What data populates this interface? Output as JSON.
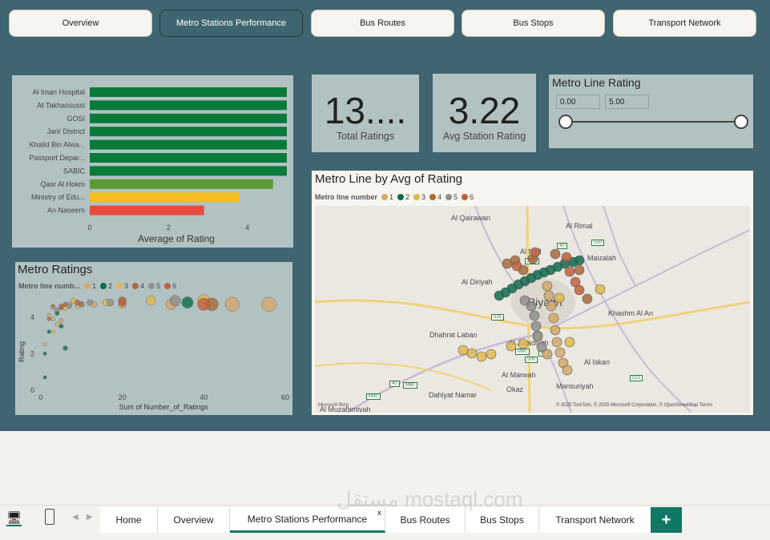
{
  "nav": {
    "buttons": [
      "Overview",
      "Metro Stations Performance",
      "Bus Routes",
      "Bus Stops",
      "Transport Network"
    ],
    "active_index": 1
  },
  "bar_chart": {
    "xlabel": "Average of Rating",
    "ticks": [
      "0",
      "2",
      "4"
    ]
  },
  "kpi_total": {
    "value": "13....",
    "label": "Total Ratings"
  },
  "kpi_avg": {
    "value": "3.22",
    "label": "Avg Station Rating"
  },
  "slicer": {
    "title": "Metro Line Rating",
    "min": "0.00",
    "max": "5.00",
    "range_fraction": [
      0.0,
      1.0
    ]
  },
  "scatter_chart": {
    "title": "Metro Ratings",
    "legend_title": "Metro line numb...",
    "xlabel": "Sum of Number_of_Ratings",
    "ylabel": "Rating",
    "xticks": [
      "0",
      "20",
      "40",
      "60"
    ],
    "yticks": [
      "0",
      "2",
      "4"
    ]
  },
  "map": {
    "title": "Metro Line by Avg of Rating",
    "legend_title": "Metro line number",
    "attribution": "© 2025 TomTom, © 2025 Microsoft Corporation, © OpenStreetMap  Terms",
    "bing": "Microsoft Bing",
    "places": [
      "Al Qairawan",
      "Al Rimal",
      "Al Nafl",
      "Maizalah",
      "Al Diriyah",
      "Riyadh",
      "Khashm Al An",
      "Dhahrat Laban",
      "Al Jaradiyah",
      "Al Iskan",
      "Al Marwah",
      "Mansuriyah",
      "Okaz",
      "Dahiyat Namar",
      "Al Muzahimiyah"
    ],
    "roads": [
      "M80",
      "40",
      "550",
      "535",
      "M90",
      "500",
      "65",
      "513",
      "40",
      "M80",
      "M90"
    ]
  },
  "legend_lines": [
    {
      "label": "1",
      "color": "#d4a86a"
    },
    {
      "label": "2",
      "color": "#0f6b4e"
    },
    {
      "label": "3",
      "color": "#e0b94d"
    },
    {
      "label": "4",
      "color": "#a86a3b"
    },
    {
      "label": "5",
      "color": "#8f8f8f"
    },
    {
      "label": "6",
      "color": "#c0603e"
    }
  ],
  "chart_data": [
    {
      "type": "bar",
      "orientation": "horizontal",
      "categories": [
        "Al Iman Hospital",
        "At Takhassussi",
        "GOSI",
        "Jarir District",
        "Khalid Bin Alwa...",
        "Passport Depar...",
        "SABIC",
        "Qasr Al Hokm",
        "Ministry of Edu...",
        "An Naseem"
      ],
      "values": [
        5.0,
        5.0,
        5.0,
        5.0,
        5.0,
        5.0,
        5.0,
        4.65,
        3.8,
        2.9
      ],
      "colors": [
        "#0a7a3b",
        "#0a7a3b",
        "#0a7a3b",
        "#0a7a3b",
        "#0a7a3b",
        "#0a7a3b",
        "#0a7a3b",
        "#5a9a35",
        "#f5bd1f",
        "#e84a3e"
      ],
      "xlabel": "Average of Rating",
      "xlim": [
        0,
        5
      ]
    },
    {
      "type": "scatter",
      "title": "Metro Ratings",
      "xlabel": "Sum of Number_of_Ratings",
      "ylabel": "Rating",
      "xlim": [
        0,
        60
      ],
      "ylim": [
        0,
        5
      ],
      "series": [
        {
          "name": "1",
          "points": [
            [
              2,
              4.1
            ],
            [
              3,
              4.5
            ],
            [
              4,
              4.3
            ],
            [
              5,
              3.8
            ],
            [
              7,
              4.7
            ],
            [
              9,
              4.6
            ],
            [
              13,
              4.7
            ],
            [
              20,
              4.7
            ],
            [
              32,
              4.7
            ],
            [
              47,
              4.7
            ],
            [
              56,
              4.7
            ],
            [
              3,
              3.9
            ]
          ]
        },
        {
          "name": "2",
          "points": [
            [
              1,
              0.7
            ],
            [
              1,
              2.0
            ],
            [
              2,
              3.2
            ],
            [
              5,
              3.5
            ],
            [
              4,
              4.2
            ],
            [
              6,
              2.3
            ],
            [
              36,
              4.8
            ]
          ]
        },
        {
          "name": "3",
          "points": [
            [
              1,
              2.5
            ],
            [
              3,
              3.2
            ],
            [
              4,
              3.6
            ],
            [
              6,
              4.5
            ],
            [
              8,
              4.9
            ],
            [
              16,
              4.8
            ],
            [
              27,
              4.9
            ],
            [
              40,
              4.9
            ]
          ]
        },
        {
          "name": "4",
          "points": [
            [
              3,
              4.6
            ],
            [
              5,
              4.5
            ],
            [
              6,
              4.7
            ],
            [
              10,
              4.7
            ],
            [
              20,
              4.9
            ],
            [
              42,
              4.7
            ]
          ]
        },
        {
          "name": "5",
          "points": [
            [
              4,
              4.4
            ],
            [
              7,
              4.6
            ],
            [
              12,
              4.8
            ],
            [
              17,
              4.8
            ],
            [
              33,
              4.9
            ]
          ]
        },
        {
          "name": "6",
          "points": [
            [
              2,
              3.9
            ],
            [
              5,
              4.6
            ],
            [
              9,
              4.8
            ],
            [
              20,
              4.8
            ],
            [
              40,
              4.7
            ]
          ]
        }
      ]
    }
  ],
  "tabs": {
    "items": [
      "Home",
      "Overview",
      "Metro Stations Performance",
      "Bus Routes",
      "Bus Stops",
      "Transport Network"
    ],
    "active_index": 2,
    "close": "x",
    "add": "+"
  },
  "watermark": "مستقل mostaql.com"
}
